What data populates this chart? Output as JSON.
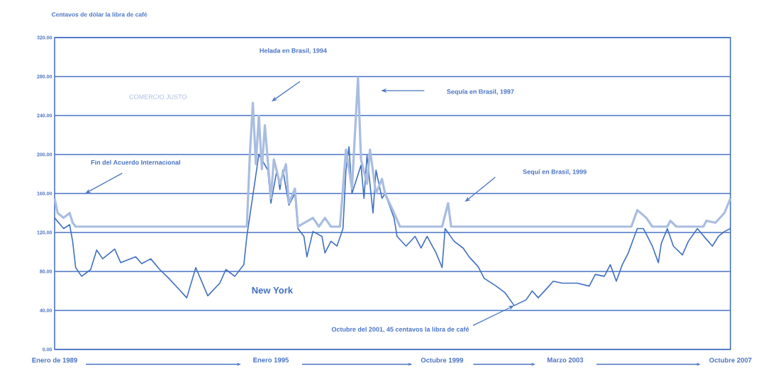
{
  "chart_data": {
    "type": "line",
    "ylabel": "Centavos de dólar la libra de café",
    "xlim": [
      "1989-01",
      "2007-10"
    ],
    "xticks": [
      {
        "value": "1989-01",
        "label": "Enero de 1989"
      },
      {
        "value": "1995-01",
        "label": "Enero 1995"
      },
      {
        "value": "1999-10",
        "label": "Octubre 1999"
      },
      {
        "value": "2003-03",
        "label": "Marzo 2003"
      },
      {
        "value": "2007-10",
        "label": "Octubre 2007"
      }
    ],
    "ylim": [
      0,
      320
    ],
    "yticks": [
      {
        "value": 0,
        "label": "0.00"
      },
      {
        "value": 40,
        "label": "40.00"
      },
      {
        "value": 80,
        "label": "80.00"
      },
      {
        "value": 120,
        "label": "120.00"
      },
      {
        "value": 160,
        "label": "160.00"
      },
      {
        "value": 200,
        "label": "200.00"
      },
      {
        "value": 240,
        "label": "240.00"
      },
      {
        "value": 280,
        "label": "280.00"
      },
      {
        "value": 320,
        "label": "320.00"
      }
    ],
    "grid": "y",
    "legend": false,
    "series": [
      {
        "name": "New York",
        "color": "#3f6fc0",
        "x": [
          "1989-01",
          "1989-04",
          "1989-06",
          "1989-07",
          "1989-08",
          "1989-10",
          "1990-01",
          "1990-03",
          "1990-05",
          "1990-09",
          "1990-11",
          "1991-04",
          "1991-06",
          "1991-09",
          "1991-12",
          "1992-03",
          "1992-06",
          "1992-09",
          "1992-12",
          "1993-04",
          "1993-08",
          "1993-10",
          "1994-01",
          "1994-04",
          "1994-05",
          "1994-07",
          "1994-09",
          "1994-12",
          "1995-01",
          "1995-03",
          "1995-04",
          "1995-05",
          "1995-07",
          "1995-09",
          "1995-10",
          "1995-12",
          "1996-01",
          "1996-03",
          "1996-06",
          "1996-07",
          "1996-09",
          "1996-11",
          "1997-01",
          "1997-02",
          "1997-03",
          "1997-04",
          "1997-06",
          "1997-07",
          "1997-08",
          "1997-09",
          "1997-11",
          "1997-12",
          "1998-02",
          "1998-03",
          "1998-06",
          "1998-07",
          "1998-10",
          "1999-01",
          "1999-03",
          "1999-05",
          "1999-08",
          "1999-10",
          "1999-11",
          "2000-02",
          "2000-05",
          "2000-07",
          "2000-10",
          "2000-12",
          "2001-04",
          "2001-07",
          "2001-10",
          "2002-02",
          "2002-04",
          "2002-06",
          "2002-09",
          "2002-11",
          "2003-02",
          "2003-07",
          "2003-11",
          "2004-01",
          "2004-04",
          "2004-06",
          "2004-08",
          "2004-10",
          "2004-12",
          "2005-02",
          "2005-03",
          "2005-05",
          "2005-08",
          "2005-10",
          "2005-11",
          "2006-01",
          "2006-03",
          "2006-06",
          "2006-08",
          "2006-11",
          "2007-02",
          "2007-04",
          "2007-06",
          "2007-08",
          "2007-10"
        ],
        "values": [
          135,
          124,
          128,
          111,
          84,
          75,
          82,
          102,
          93,
          103,
          89,
          95,
          88,
          93,
          82,
          73,
          63,
          53,
          84,
          55,
          68,
          82,
          75,
          87,
          116,
          null,
          200,
          184,
          150,
          184,
          164,
          184,
          148,
          160,
          124,
          116,
          95,
          121,
          116,
          99,
          111,
          106,
          124,
          184,
          208,
          160,
          null,
          189,
          155,
          199,
          140,
          184,
          155,
          160,
          135,
          116,
          106,
          116,
          104,
          116,
          99,
          84,
          124,
          111,
          104,
          95,
          85,
          73,
          65,
          58,
          45,
          51,
          60,
          53,
          63,
          70,
          68,
          68,
          65,
          77,
          75,
          87,
          70,
          87,
          99,
          116,
          124,
          124,
          106,
          89,
          109,
          124,
          106,
          97,
          111,
          124,
          113,
          106,
          116,
          121,
          124
        ]
      },
      {
        "name": "COMERCIO JUSTO",
        "color": "#a9bde0",
        "x": [
          "1989-01",
          "1989-02",
          "1989-04",
          "1989-06",
          "1989-07",
          "1989-08",
          "1994-05",
          "1994-06",
          "1994-07",
          "1994-08",
          "1994-09",
          "1994-10",
          "1994-11",
          "1995-01",
          "1995-02",
          "1995-04",
          "1995-06",
          "1995-07",
          "1995-09",
          "1995-10",
          "1996-03",
          "1996-05",
          "1996-07",
          "1996-09",
          "1996-12",
          "1997-02",
          "1997-04",
          "1997-06",
          "1997-07",
          "1997-09",
          "1997-10",
          "1997-12",
          "1998-02",
          "1998-03",
          "1998-06",
          "1998-08",
          "1999-10",
          "1999-12",
          "2000-01",
          "2005-01",
          "2005-03",
          "2005-06",
          "2005-08",
          "2006-01",
          "2006-02",
          "2006-04",
          "2007-01",
          "2007-02",
          "2007-05",
          "2007-08",
          "2007-10"
        ],
        "values": [
          155,
          140,
          135,
          140,
          130,
          126,
          126,
          200,
          253,
          190,
          240,
          185,
          230,
          155,
          195,
          170,
          190,
          150,
          165,
          126,
          135,
          126,
          135,
          126,
          126,
          205,
          165,
          279,
          195,
          170,
          205,
          160,
          175,
          160,
          140,
          126,
          126,
          150,
          126,
          126,
          143,
          135,
          126,
          126,
          132,
          126,
          126,
          132,
          130,
          140,
          155
        ]
      }
    ],
    "annotations": [
      "Fin del Acuerdo Internacional",
      "Helada en Brasil, 1994",
      "Sequía en Brasil, 1997",
      "Sequí en Brasil, 1999",
      {
        "text": "Octubre del 2001, 45 centavos la libra de café",
        "x": "2001-10",
        "y": 45
      }
    ]
  }
}
